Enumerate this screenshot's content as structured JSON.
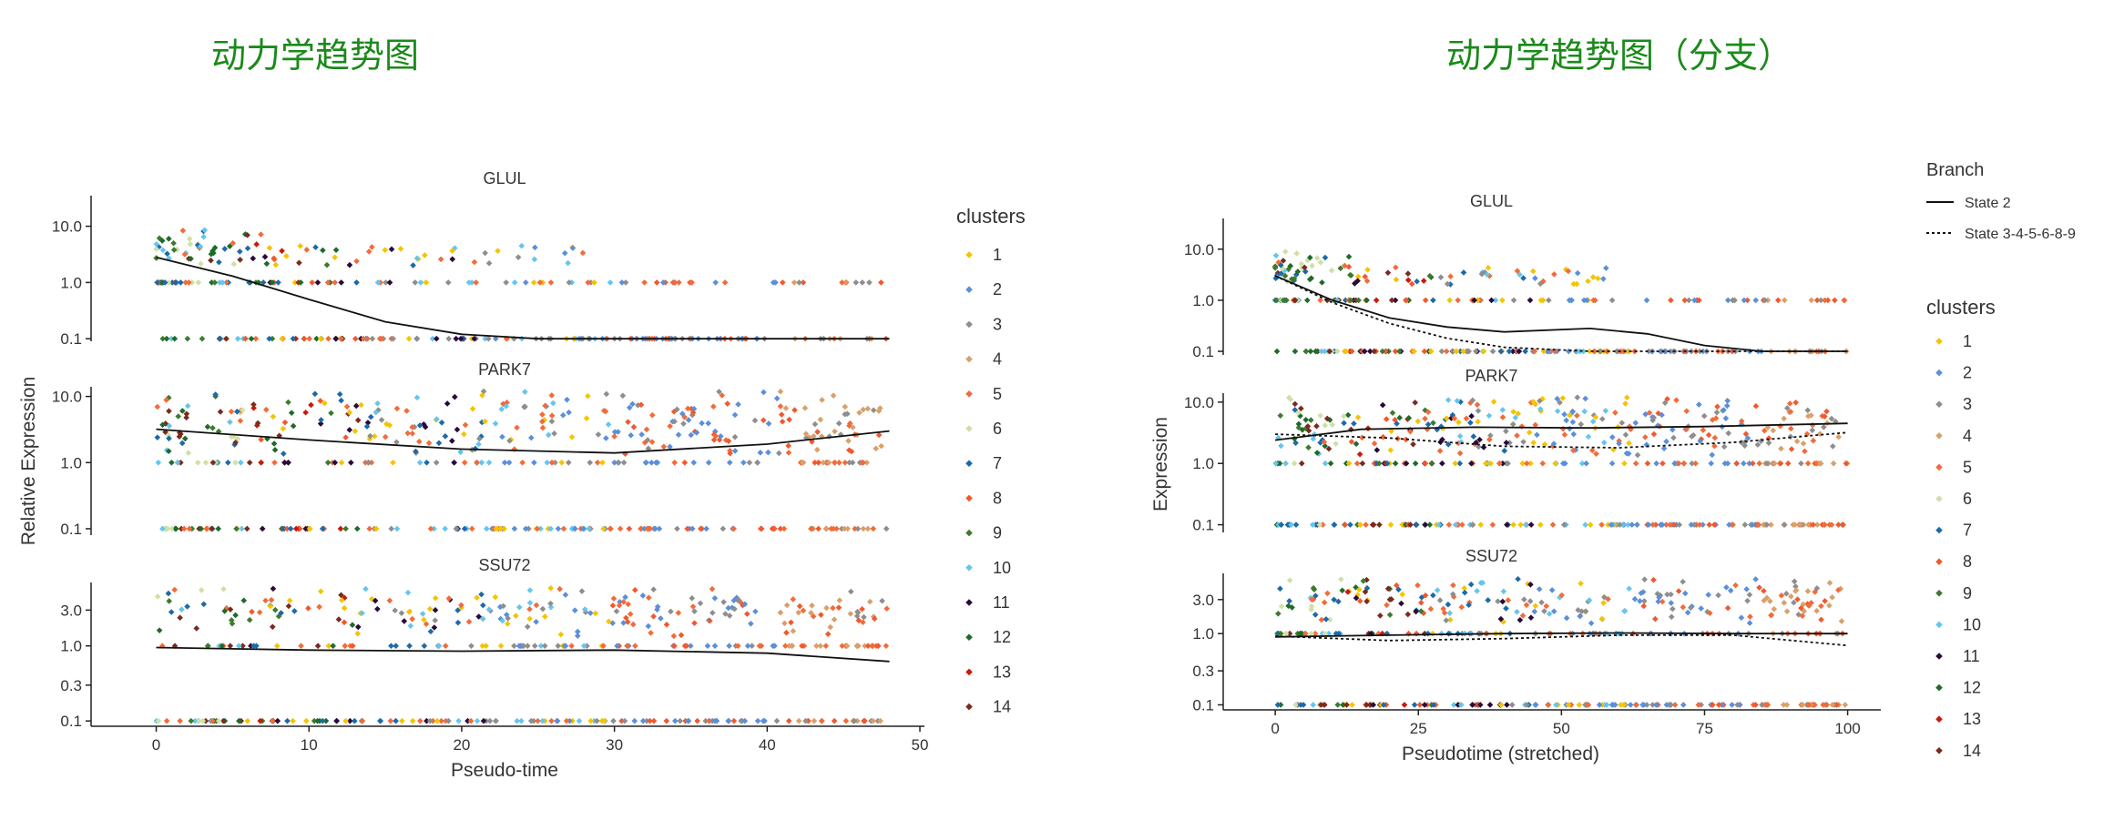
{
  "titles": {
    "left": "动力学趋势图",
    "right": "动力学趋势图（分支）"
  },
  "cluster_colors": [
    "#F5C400",
    "#5B8FD9",
    "#8E8E8E",
    "#D9A06B",
    "#F26B3A",
    "#CFE0A8",
    "#1C6AA8",
    "#F0592E",
    "#3E7A2E",
    "#66C5EE",
    "#2A0A3A",
    "#1E6B2A",
    "#C81A0A",
    "#7A2A1E"
  ],
  "chart_data": [
    {
      "type": "scatter",
      "ylabel": "Relative Expression",
      "xlabel": "Pseudo-time",
      "x_ticks": [
        0,
        10,
        20,
        30,
        40,
        50
      ],
      "xlim": [
        -2,
        50
      ],
      "y_scale": "log",
      "grid": false,
      "legend_title": "clusters",
      "legend_labels": [
        "1",
        "2",
        "3",
        "4",
        "5",
        "6",
        "7",
        "8",
        "9",
        "10",
        "11",
        "12",
        "13",
        "14"
      ],
      "panels": [
        {
          "gene": "GLUL",
          "y_ticks": [
            "10.0",
            "1.0",
            "0.1"
          ],
          "y_tick_values": [
            10,
            1,
            0.1
          ],
          "ylim": [
            0.09,
            35
          ],
          "levels": [
            0.1,
            1.0,
            3.0,
            6.0
          ],
          "trend": [
            [
              0,
              2.8
            ],
            [
              5,
              1.3
            ],
            [
              10,
              0.5
            ],
            [
              15,
              0.2
            ],
            [
              20,
              0.12
            ],
            [
              25,
              0.1
            ],
            [
              30,
              0.1
            ],
            [
              40,
              0.1
            ],
            [
              48,
              0.1
            ]
          ]
        },
        {
          "gene": "PARK7",
          "y_ticks": [
            "10.0",
            "1.0",
            "0.1"
          ],
          "y_tick_values": [
            10,
            1,
            0.1
          ],
          "ylim": [
            0.08,
            14
          ],
          "levels": [
            0.1,
            1.0,
            2.0,
            3.0,
            5.0,
            8.0
          ],
          "trend": [
            [
              0,
              3.2
            ],
            [
              10,
              2.2
            ],
            [
              20,
              1.6
            ],
            [
              30,
              1.4
            ],
            [
              40,
              1.9
            ],
            [
              48,
              3.0
            ]
          ]
        },
        {
          "gene": "SSU72",
          "y_ticks": [
            "3.0",
            "1.0",
            "0.3",
            "0.1"
          ],
          "y_tick_values": [
            3,
            1,
            0.3,
            0.1
          ],
          "ylim": [
            0.085,
            7
          ],
          "levels": [
            0.1,
            1.0,
            2.0,
            3.0,
            4.0
          ],
          "trend": [
            [
              0,
              0.95
            ],
            [
              10,
              0.88
            ],
            [
              20,
              0.85
            ],
            [
              30,
              0.88
            ],
            [
              40,
              0.8
            ],
            [
              48,
              0.62
            ]
          ]
        }
      ]
    },
    {
      "type": "scatter",
      "ylabel": "Expression",
      "xlabel": "Pseudotime (stretched)",
      "x_ticks": [
        0,
        25,
        50,
        75,
        100
      ],
      "xlim": [
        -4,
        105
      ],
      "y_scale": "log",
      "grid": false,
      "legend_title": "clusters",
      "legend_labels": [
        "1",
        "2",
        "3",
        "4",
        "5",
        "6",
        "7",
        "8",
        "9",
        "10",
        "11",
        "12",
        "13",
        "14"
      ],
      "branch_title": "Branch",
      "branch_labels": [
        "State 2",
        "State 3-4-5-6-8-9"
      ],
      "panels": [
        {
          "gene": "GLUL",
          "y_ticks": [
            "10.0",
            "1.0",
            "0.1"
          ],
          "y_tick_values": [
            10,
            1,
            0.1
          ],
          "ylim": [
            0.085,
            40
          ],
          "levels": [
            0.1,
            1.0,
            3.0,
            6.0
          ],
          "trend_solid": [
            [
              0,
              3.0
            ],
            [
              10,
              1.0
            ],
            [
              20,
              0.45
            ],
            [
              30,
              0.3
            ],
            [
              40,
              0.24
            ],
            [
              55,
              0.28
            ],
            [
              65,
              0.22
            ],
            [
              75,
              0.13
            ],
            [
              85,
              0.1
            ],
            [
              100,
              0.1
            ]
          ],
          "trend_dotted": [
            [
              0,
              3.0
            ],
            [
              10,
              0.9
            ],
            [
              20,
              0.35
            ],
            [
              30,
              0.18
            ],
            [
              40,
              0.12
            ],
            [
              55,
              0.1
            ],
            [
              75,
              0.1
            ],
            [
              100,
              0.1
            ]
          ]
        },
        {
          "gene": "PARK7",
          "y_ticks": [
            "10.0",
            "1.0",
            "0.1"
          ],
          "y_tick_values": [
            10,
            1,
            0.1
          ],
          "ylim": [
            0.075,
            14
          ],
          "levels": [
            0.1,
            1.0,
            2.0,
            3.0,
            5.0,
            8.0
          ],
          "trend_solid": [
            [
              0,
              2.4
            ],
            [
              15,
              3.6
            ],
            [
              35,
              3.9
            ],
            [
              55,
              3.8
            ],
            [
              75,
              4.0
            ],
            [
              100,
              4.5
            ]
          ],
          "trend_dotted": [
            [
              0,
              3.0
            ],
            [
              20,
              2.6
            ],
            [
              40,
              1.9
            ],
            [
              60,
              1.8
            ],
            [
              80,
              2.2
            ],
            [
              100,
              3.2
            ]
          ]
        },
        {
          "gene": "SSU72",
          "y_ticks": [
            "3.0",
            "1.0",
            "0.3",
            "0.1"
          ],
          "y_tick_values": [
            3,
            1,
            0.3,
            0.1
          ],
          "ylim": [
            0.085,
            7
          ],
          "levels": [
            0.1,
            1.0,
            2.0,
            3.0,
            4.0
          ],
          "trend_solid": [
            [
              0,
              0.9
            ],
            [
              20,
              0.95
            ],
            [
              40,
              1.0
            ],
            [
              60,
              1.02
            ],
            [
              80,
              1.0
            ],
            [
              100,
              1.0
            ]
          ],
          "trend_dotted": [
            [
              0,
              0.92
            ],
            [
              20,
              0.8
            ],
            [
              40,
              0.85
            ],
            [
              60,
              0.95
            ],
            [
              80,
              0.95
            ],
            [
              100,
              0.68
            ]
          ]
        }
      ]
    }
  ]
}
